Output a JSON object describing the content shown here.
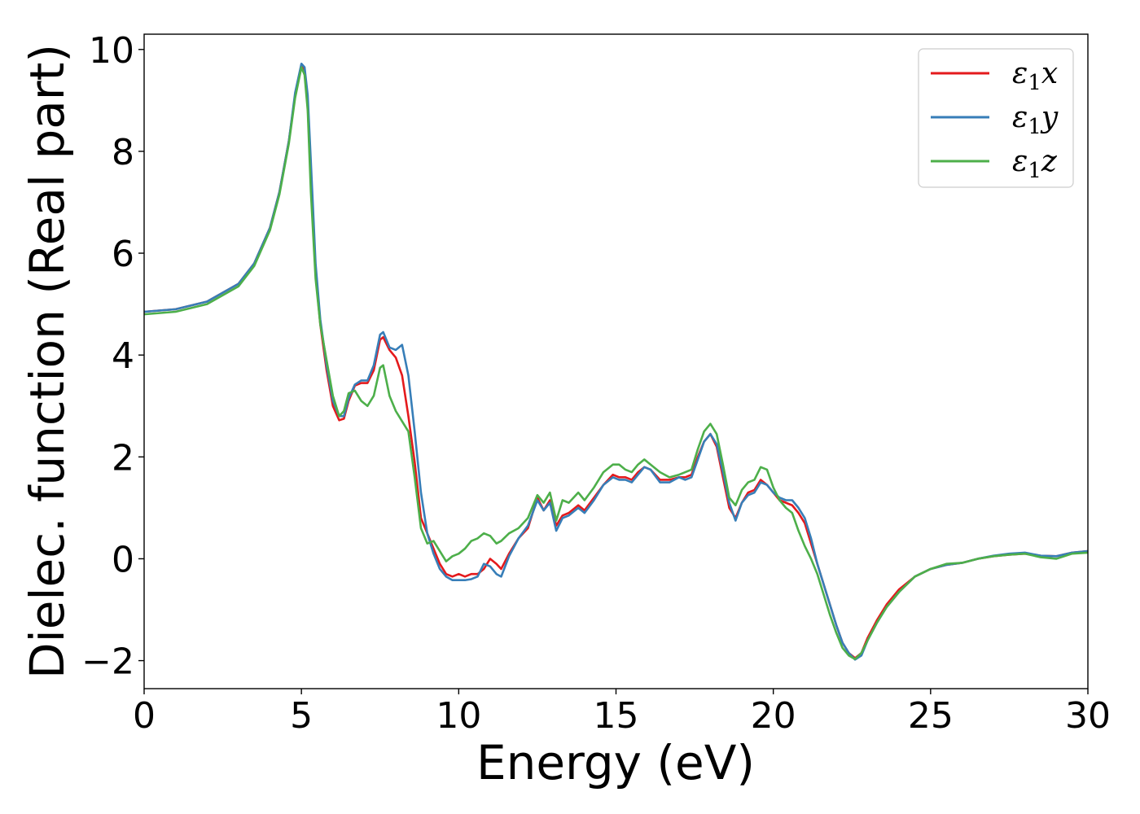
{
  "chart_data": {
    "type": "line",
    "title": "",
    "xlabel": "Energy (eV)",
    "ylabel": "Dielec. function (Real part)",
    "xlim": [
      0,
      30
    ],
    "ylim": [
      -2.55,
      10.3
    ],
    "xticks": [
      0,
      5,
      10,
      15,
      20,
      25,
      30
    ],
    "yticks": [
      -2,
      0,
      2,
      4,
      6,
      8,
      10
    ],
    "xtick_labels": [
      "0",
      "5",
      "10",
      "15",
      "20",
      "25",
      "30"
    ],
    "ytick_labels": [
      "−2",
      "0",
      "2",
      "4",
      "6",
      "8",
      "10"
    ],
    "grid": false,
    "legend_position": "top-right",
    "series": [
      {
        "name": "ε1x",
        "symbol": "ε",
        "subscript": "1",
        "component": "x",
        "color": "#e41a1c",
        "x": [
          0,
          1,
          2,
          3,
          3.5,
          4,
          4.3,
          4.6,
          4.8,
          5.0,
          5.1,
          5.2,
          5.3,
          5.45,
          5.6,
          5.8,
          6.0,
          6.2,
          6.35,
          6.5,
          6.7,
          6.9,
          7.1,
          7.3,
          7.5,
          7.6,
          7.8,
          8.0,
          8.2,
          8.4,
          8.6,
          8.8,
          9.0,
          9.2,
          9.4,
          9.6,
          9.8,
          10.0,
          10.2,
          10.4,
          10.6,
          10.8,
          11.0,
          11.2,
          11.35,
          11.6,
          11.9,
          12.2,
          12.5,
          12.7,
          12.9,
          13.1,
          13.3,
          13.5,
          13.8,
          14.0,
          14.3,
          14.6,
          14.9,
          15.1,
          15.3,
          15.5,
          15.7,
          15.9,
          16.1,
          16.4,
          16.7,
          17.0,
          17.2,
          17.4,
          17.6,
          17.8,
          18.0,
          18.2,
          18.4,
          18.6,
          18.8,
          19.0,
          19.2,
          19.4,
          19.6,
          19.8,
          20.0,
          20.2,
          20.4,
          20.6,
          20.8,
          21.0,
          21.2,
          21.4,
          21.6,
          21.8,
          22.0,
          22.2,
          22.4,
          22.6,
          22.8,
          23.0,
          23.3,
          23.6,
          24.0,
          24.5,
          25.0,
          25.5,
          26.0,
          26.5,
          27.0,
          27.5,
          28.0,
          28.5,
          29.0,
          29.5,
          30.0
        ],
        "y": [
          4.85,
          4.9,
          5.05,
          5.4,
          5.8,
          6.5,
          7.2,
          8.2,
          9.1,
          9.7,
          9.55,
          8.9,
          7.4,
          5.6,
          4.6,
          3.7,
          3.0,
          2.72,
          2.75,
          3.1,
          3.4,
          3.45,
          3.45,
          3.7,
          4.3,
          4.35,
          4.1,
          3.95,
          3.6,
          2.8,
          1.9,
          0.8,
          0.5,
          0.2,
          -0.1,
          -0.3,
          -0.35,
          -0.3,
          -0.35,
          -0.3,
          -0.3,
          -0.2,
          0.0,
          -0.1,
          -0.2,
          0.1,
          0.4,
          0.6,
          1.2,
          0.95,
          1.15,
          0.65,
          0.85,
          0.9,
          1.05,
          0.95,
          1.2,
          1.45,
          1.65,
          1.6,
          1.6,
          1.55,
          1.7,
          1.8,
          1.75,
          1.55,
          1.55,
          1.6,
          1.6,
          1.65,
          2.0,
          2.3,
          2.45,
          2.2,
          1.6,
          1.0,
          0.8,
          1.1,
          1.3,
          1.35,
          1.55,
          1.45,
          1.3,
          1.15,
          1.1,
          1.05,
          0.9,
          0.7,
          0.3,
          -0.1,
          -0.5,
          -0.9,
          -1.3,
          -1.65,
          -1.85,
          -1.95,
          -1.85,
          -1.55,
          -1.2,
          -0.9,
          -0.6,
          -0.35,
          -0.2,
          -0.12,
          -0.08,
          0.0,
          0.05,
          0.08,
          0.1,
          0.06,
          0.05,
          0.12,
          0.15
        ]
      },
      {
        "name": "ε1y",
        "symbol": "ε",
        "subscript": "1",
        "component": "y",
        "color": "#377eb8",
        "x": [
          0,
          1,
          2,
          3,
          3.5,
          4,
          4.3,
          4.6,
          4.8,
          5.0,
          5.1,
          5.2,
          5.3,
          5.45,
          5.6,
          5.8,
          6.0,
          6.2,
          6.35,
          6.5,
          6.7,
          6.9,
          7.1,
          7.3,
          7.5,
          7.6,
          7.8,
          8.0,
          8.2,
          8.4,
          8.6,
          8.8,
          9.0,
          9.2,
          9.4,
          9.6,
          9.8,
          10.0,
          10.2,
          10.4,
          10.6,
          10.8,
          11.0,
          11.2,
          11.35,
          11.6,
          11.9,
          12.2,
          12.5,
          12.7,
          12.9,
          13.1,
          13.3,
          13.5,
          13.8,
          14.0,
          14.3,
          14.6,
          14.9,
          15.1,
          15.3,
          15.5,
          15.7,
          15.9,
          16.1,
          16.4,
          16.7,
          17.0,
          17.2,
          17.4,
          17.6,
          17.8,
          18.0,
          18.2,
          18.4,
          18.6,
          18.8,
          19.0,
          19.2,
          19.4,
          19.6,
          19.8,
          20.0,
          20.2,
          20.4,
          20.6,
          20.8,
          21.0,
          21.2,
          21.4,
          21.6,
          21.8,
          22.0,
          22.2,
          22.4,
          22.6,
          22.8,
          23.0,
          23.3,
          23.6,
          24.0,
          24.5,
          25.0,
          25.5,
          26.0,
          26.5,
          27.0,
          27.5,
          28.0,
          28.5,
          29.0,
          29.5,
          30.0
        ],
        "y": [
          4.85,
          4.9,
          5.05,
          5.4,
          5.8,
          6.5,
          7.2,
          8.2,
          9.15,
          9.72,
          9.65,
          9.1,
          7.8,
          5.8,
          4.7,
          3.8,
          3.1,
          2.8,
          2.8,
          3.15,
          3.42,
          3.5,
          3.5,
          3.8,
          4.4,
          4.45,
          4.15,
          4.1,
          4.2,
          3.6,
          2.5,
          1.3,
          0.5,
          0.1,
          -0.2,
          -0.35,
          -0.42,
          -0.42,
          -0.42,
          -0.4,
          -0.35,
          -0.1,
          -0.15,
          -0.3,
          -0.35,
          0.05,
          0.4,
          0.65,
          1.15,
          0.95,
          1.1,
          0.55,
          0.8,
          0.85,
          1.0,
          0.9,
          1.15,
          1.45,
          1.6,
          1.55,
          1.55,
          1.5,
          1.65,
          1.8,
          1.75,
          1.5,
          1.5,
          1.6,
          1.55,
          1.6,
          1.95,
          2.3,
          2.45,
          2.25,
          1.7,
          1.1,
          0.75,
          1.1,
          1.25,
          1.3,
          1.5,
          1.45,
          1.3,
          1.2,
          1.15,
          1.15,
          1.0,
          0.8,
          0.4,
          -0.1,
          -0.5,
          -0.9,
          -1.3,
          -1.65,
          -1.85,
          -1.98,
          -1.9,
          -1.6,
          -1.25,
          -0.95,
          -0.65,
          -0.35,
          -0.2,
          -0.12,
          -0.08,
          0.0,
          0.06,
          0.1,
          0.12,
          0.06,
          0.05,
          0.12,
          0.15
        ]
      },
      {
        "name": "ε1z",
        "symbol": "ε",
        "subscript": "1",
        "component": "z",
        "color": "#4daf4a",
        "x": [
          0,
          1,
          2,
          3,
          3.5,
          4,
          4.3,
          4.6,
          4.8,
          5.0,
          5.1,
          5.2,
          5.3,
          5.45,
          5.6,
          5.8,
          6.0,
          6.2,
          6.35,
          6.5,
          6.7,
          6.9,
          7.1,
          7.3,
          7.5,
          7.6,
          7.8,
          8.0,
          8.2,
          8.4,
          8.6,
          8.8,
          9.0,
          9.2,
          9.4,
          9.6,
          9.8,
          10.0,
          10.2,
          10.4,
          10.6,
          10.8,
          11.0,
          11.2,
          11.35,
          11.6,
          11.9,
          12.2,
          12.5,
          12.7,
          12.9,
          13.1,
          13.3,
          13.5,
          13.8,
          14.0,
          14.3,
          14.6,
          14.9,
          15.1,
          15.3,
          15.5,
          15.7,
          15.9,
          16.1,
          16.4,
          16.7,
          17.0,
          17.2,
          17.4,
          17.6,
          17.8,
          18.0,
          18.2,
          18.4,
          18.6,
          18.8,
          19.0,
          19.2,
          19.4,
          19.6,
          19.8,
          20.0,
          20.2,
          20.4,
          20.6,
          20.8,
          21.0,
          21.2,
          21.4,
          21.6,
          21.8,
          22.0,
          22.2,
          22.4,
          22.6,
          22.8,
          23.0,
          23.3,
          23.6,
          24.0,
          24.5,
          25.0,
          25.5,
          26.0,
          26.5,
          27.0,
          27.5,
          28.0,
          28.5,
          29.0,
          29.5,
          30.0
        ],
        "y": [
          4.8,
          4.85,
          5.0,
          5.35,
          5.75,
          6.45,
          7.15,
          8.15,
          9.05,
          9.65,
          9.5,
          8.8,
          7.2,
          5.5,
          4.6,
          3.9,
          3.2,
          2.8,
          2.9,
          3.25,
          3.3,
          3.1,
          3.0,
          3.2,
          3.75,
          3.8,
          3.2,
          2.9,
          2.7,
          2.5,
          1.6,
          0.6,
          0.3,
          0.35,
          0.15,
          -0.05,
          0.05,
          0.1,
          0.2,
          0.35,
          0.4,
          0.5,
          0.45,
          0.3,
          0.35,
          0.5,
          0.6,
          0.8,
          1.25,
          1.1,
          1.3,
          0.75,
          1.15,
          1.1,
          1.3,
          1.15,
          1.4,
          1.7,
          1.85,
          1.85,
          1.75,
          1.7,
          1.85,
          1.95,
          1.85,
          1.7,
          1.6,
          1.65,
          1.7,
          1.75,
          2.15,
          2.5,
          2.65,
          2.45,
          1.85,
          1.2,
          1.05,
          1.35,
          1.5,
          1.55,
          1.8,
          1.75,
          1.4,
          1.15,
          1.0,
          0.9,
          0.55,
          0.25,
          0.0,
          -0.3,
          -0.7,
          -1.1,
          -1.45,
          -1.75,
          -1.9,
          -1.97,
          -1.85,
          -1.6,
          -1.25,
          -0.95,
          -0.65,
          -0.35,
          -0.2,
          -0.1,
          -0.08,
          0.0,
          0.05,
          0.08,
          0.1,
          0.03,
          0.0,
          0.1,
          0.12
        ]
      }
    ]
  }
}
